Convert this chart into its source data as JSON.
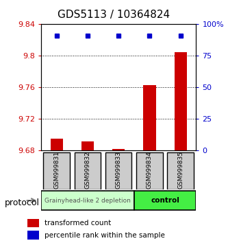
{
  "title": "GDS5113 / 10364824",
  "samples": [
    "GSM999831",
    "GSM999832",
    "GSM999833",
    "GSM999834",
    "GSM999835"
  ],
  "bar_values": [
    9.695,
    9.692,
    9.682,
    9.763,
    9.805
  ],
  "bar_baseline": 9.68,
  "dot_values": [
    91,
    91,
    91,
    91,
    91
  ],
  "ylim_left": [
    9.68,
    9.84
  ],
  "ylim_right": [
    0,
    100
  ],
  "yticks_left": [
    9.68,
    9.72,
    9.76,
    9.8,
    9.84
  ],
  "yticks_right": [
    0,
    25,
    50,
    75,
    100
  ],
  "ytick_labels_right": [
    "0",
    "25",
    "50",
    "75",
    "100%"
  ],
  "bar_color": "#cc0000",
  "dot_color": "#0000cc",
  "group1_samples": [
    0,
    1,
    2
  ],
  "group2_samples": [
    3,
    4
  ],
  "group1_label": "Grainyhead-like 2 depletion",
  "group2_label": "control",
  "group1_color": "#ccffcc",
  "group2_color": "#44ee44",
  "protocol_label": "protocol",
  "legend_bar_label": "transformed count",
  "legend_dot_label": "percentile rank within the sample",
  "grid_linestyle": "dotted",
  "bg_color": "#ffffff",
  "sample_box_color": "#cccccc",
  "bar_width": 0.4
}
